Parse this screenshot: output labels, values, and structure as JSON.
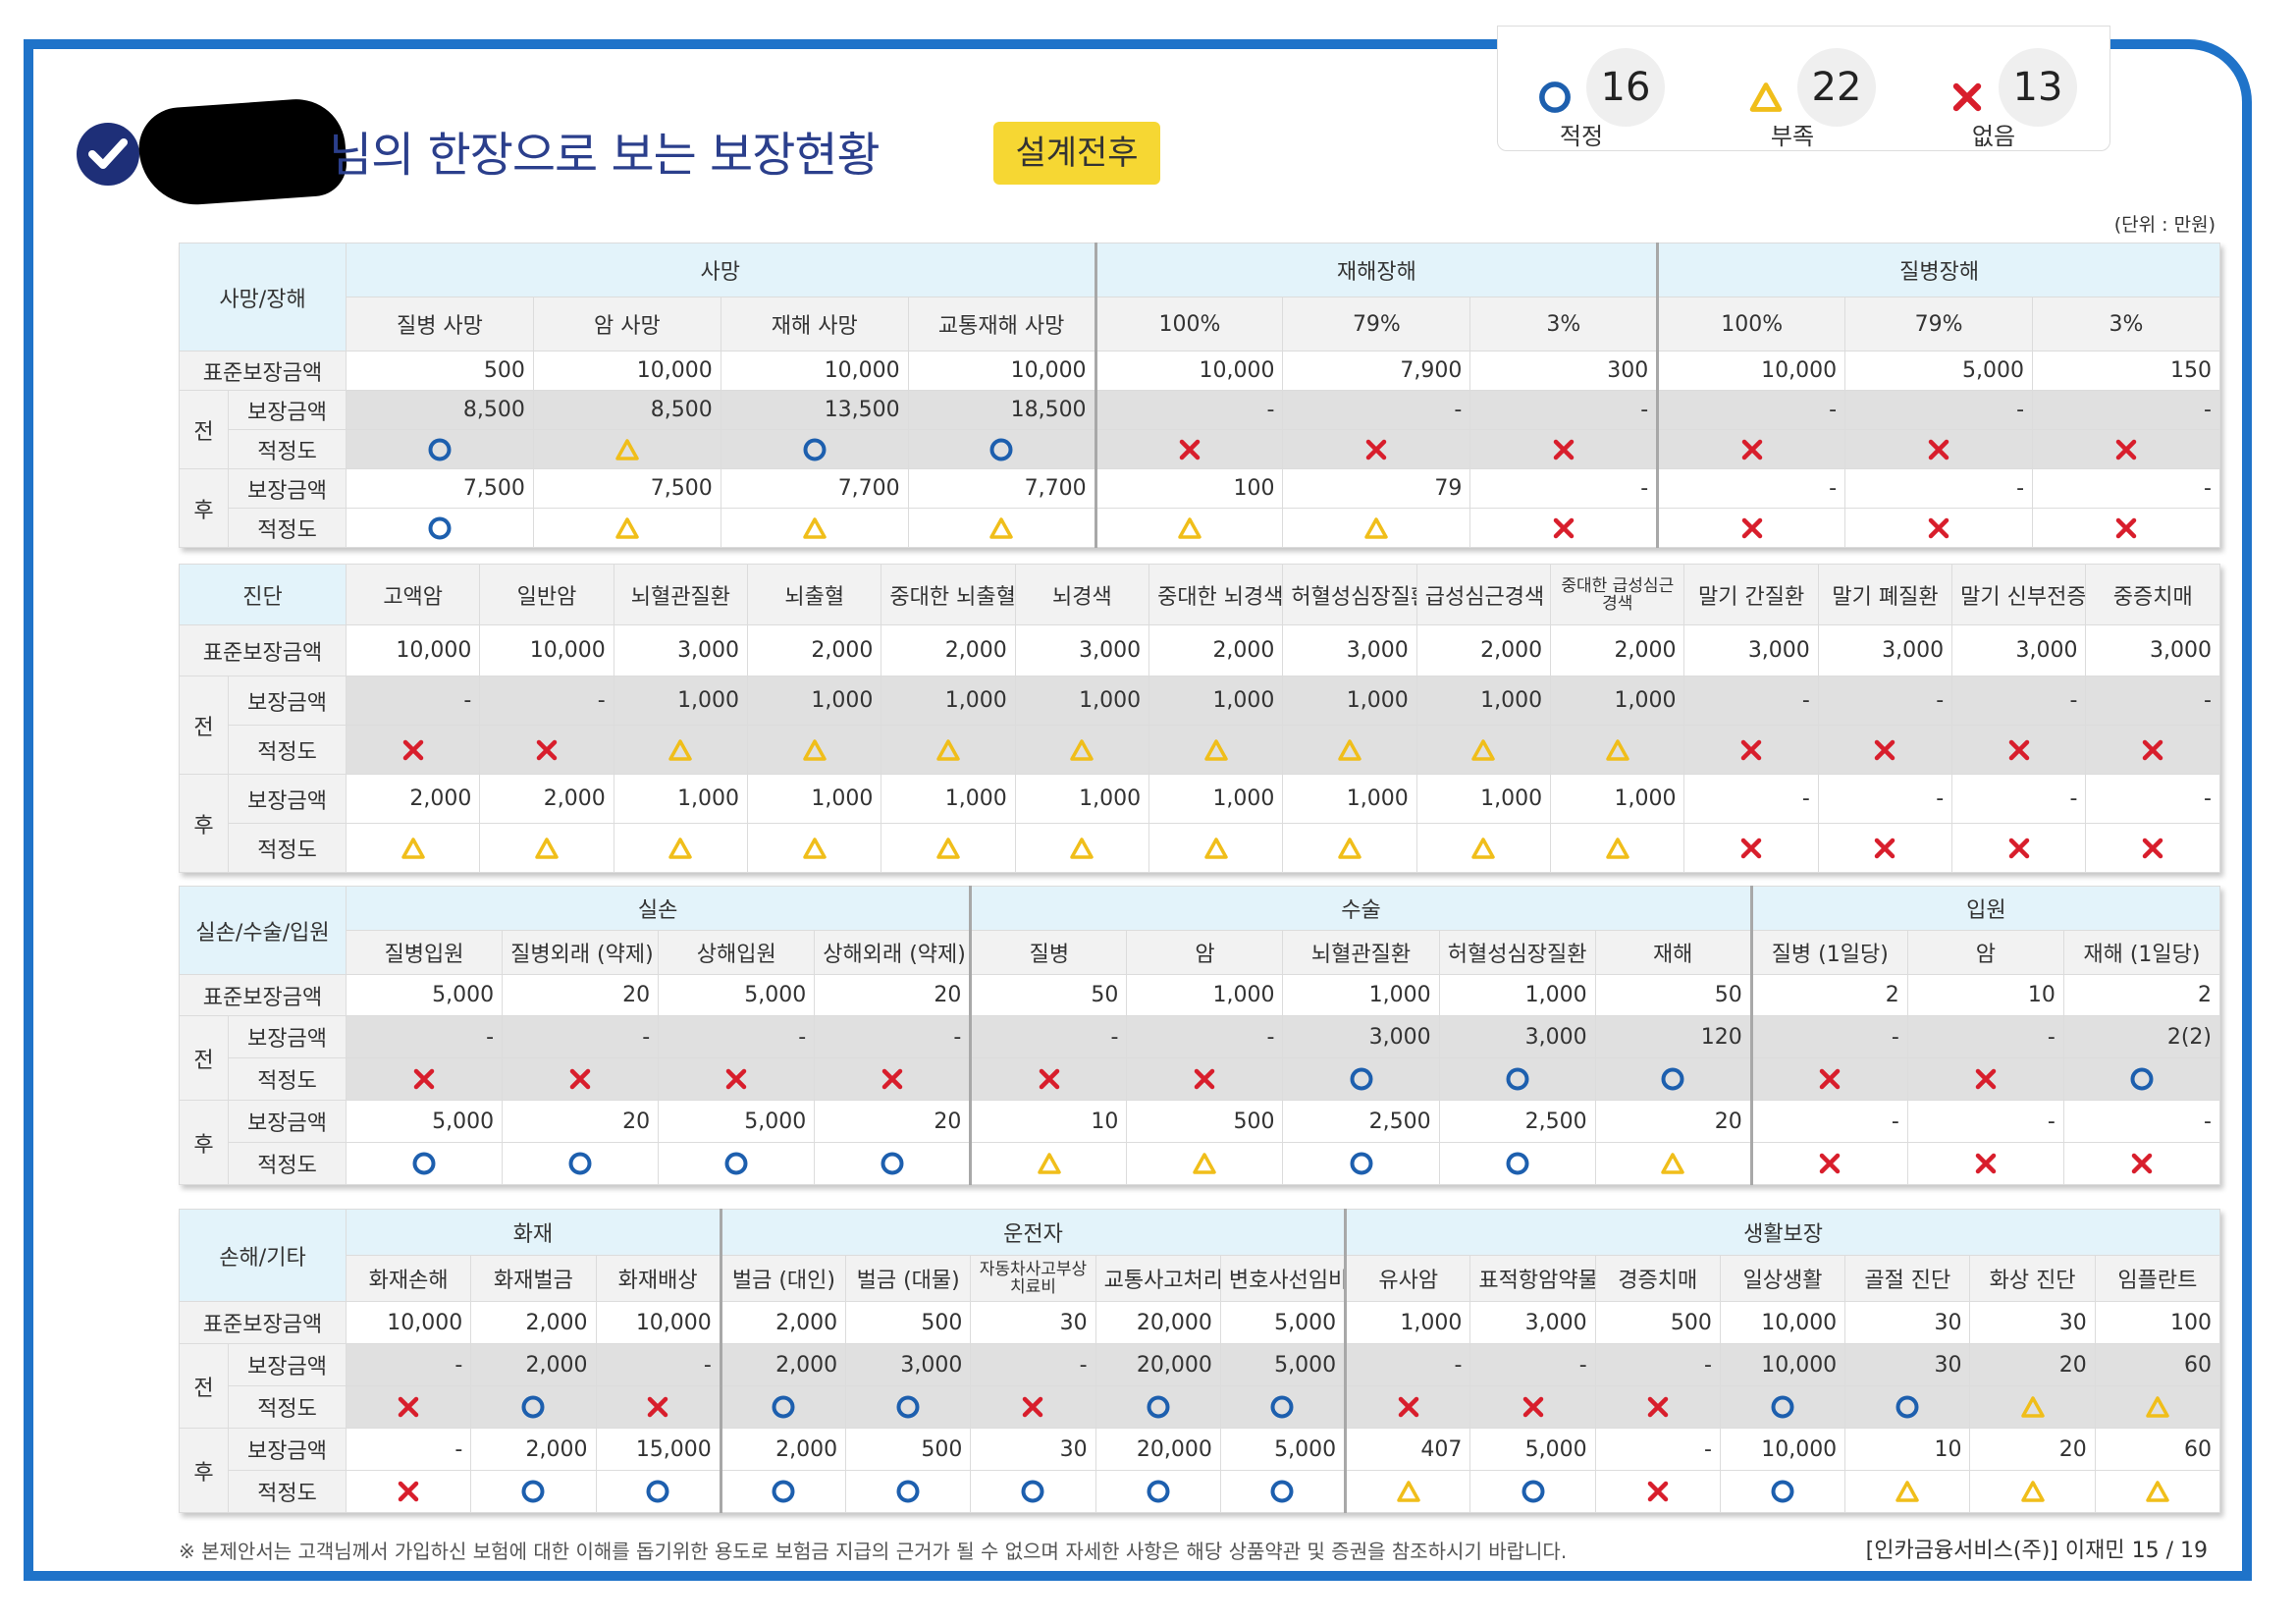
{
  "header": {
    "title": "님의 한장으로 보는 보장현황",
    "badge": "설계전후",
    "unit": "(단위 : 만원)"
  },
  "legend": [
    {
      "mark": "O",
      "label": "적정",
      "count": "16"
    },
    {
      "mark": "T",
      "label": "부족",
      "count": "22"
    },
    {
      "mark": "X",
      "label": "없음",
      "count": "13"
    }
  ],
  "labels": {
    "std": "표준보장금액",
    "before": "전",
    "after": "후",
    "amount": "보장금액",
    "fit": "적정도"
  },
  "colors": {
    "circle": "#1d5fae",
    "triangle": "#f0be1a",
    "cross": "#d81e2c",
    "frame": "#1f73c9"
  },
  "sections": [
    {
      "label": "사망/장해",
      "groups": [
        {
          "name": "사망",
          "span": 4
        },
        {
          "name": "재해장해",
          "span": 3
        },
        {
          "name": "질병장해",
          "span": 3
        }
      ],
      "columns": [
        "질병 사망",
        "암 사망",
        "재해 사망",
        "교통재해 사망",
        "100%",
        "79%",
        "3%",
        "100%",
        "79%",
        "3%"
      ],
      "std": [
        "500",
        "10,000",
        "10,000",
        "10,000",
        "10,000",
        "7,900",
        "300",
        "10,000",
        "5,000",
        "150"
      ],
      "before_amount": [
        "8,500",
        "8,500",
        "13,500",
        "18,500",
        "-",
        "-",
        "-",
        "-",
        "-",
        "-"
      ],
      "before_fit": [
        "O",
        "T",
        "O",
        "O",
        "X",
        "X",
        "X",
        "X",
        "X",
        "X"
      ],
      "after_amount": [
        "7,500",
        "7,500",
        "7,700",
        "7,700",
        "100",
        "79",
        "-",
        "-",
        "-",
        "-"
      ],
      "after_fit": [
        "O",
        "T",
        "T",
        "T",
        "T",
        "T",
        "X",
        "X",
        "X",
        "X"
      ]
    },
    {
      "label": "진단",
      "groups": [],
      "columns": [
        "고액암",
        "일반암",
        "뇌혈관질환",
        "뇌출혈",
        "중대한 뇌출혈",
        "뇌경색",
        "중대한 뇌경색",
        "허혈성심장질환",
        "급성심근경색",
        "중대한 급성심근경색",
        "말기 간질환",
        "말기 폐질환",
        "말기 신부전증",
        "중증치매"
      ],
      "std": [
        "10,000",
        "10,000",
        "3,000",
        "2,000",
        "2,000",
        "3,000",
        "2,000",
        "3,000",
        "2,000",
        "2,000",
        "3,000",
        "3,000",
        "3,000",
        "3,000"
      ],
      "before_amount": [
        "-",
        "-",
        "1,000",
        "1,000",
        "1,000",
        "1,000",
        "1,000",
        "1,000",
        "1,000",
        "1,000",
        "-",
        "-",
        "-",
        "-"
      ],
      "before_fit": [
        "X",
        "X",
        "T",
        "T",
        "T",
        "T",
        "T",
        "T",
        "T",
        "T",
        "X",
        "X",
        "X",
        "X"
      ],
      "after_amount": [
        "2,000",
        "2,000",
        "1,000",
        "1,000",
        "1,000",
        "1,000",
        "1,000",
        "1,000",
        "1,000",
        "1,000",
        "-",
        "-",
        "-",
        "-"
      ],
      "after_fit": [
        "T",
        "T",
        "T",
        "T",
        "T",
        "T",
        "T",
        "T",
        "T",
        "T",
        "X",
        "X",
        "X",
        "X"
      ]
    },
    {
      "label": "실손/수술/입원",
      "groups": [
        {
          "name": "실손",
          "span": 4
        },
        {
          "name": "수술",
          "span": 5
        },
        {
          "name": "입원",
          "span": 3
        }
      ],
      "columns": [
        "질병입원",
        "질병외래 (약제)",
        "상해입원",
        "상해외래 (약제)",
        "질병",
        "암",
        "뇌혈관질환",
        "허혈성심장질환",
        "재해",
        "질병 (1일당)",
        "암",
        "재해 (1일당)"
      ],
      "std": [
        "5,000",
        "20",
        "5,000",
        "20",
        "50",
        "1,000",
        "1,000",
        "1,000",
        "50",
        "2",
        "10",
        "2"
      ],
      "before_amount": [
        "-",
        "-",
        "-",
        "-",
        "-",
        "-",
        "3,000",
        "3,000",
        "120",
        "-",
        "-",
        "2(2)"
      ],
      "before_fit": [
        "X",
        "X",
        "X",
        "X",
        "X",
        "X",
        "O",
        "O",
        "O",
        "X",
        "X",
        "O"
      ],
      "after_amount": [
        "5,000",
        "20",
        "5,000",
        "20",
        "10",
        "500",
        "2,500",
        "2,500",
        "20",
        "-",
        "-",
        "-"
      ],
      "after_fit": [
        "O",
        "O",
        "O",
        "O",
        "T",
        "T",
        "O",
        "O",
        "T",
        "X",
        "X",
        "X"
      ]
    },
    {
      "label": "손해/기타",
      "groups": [
        {
          "name": "화재",
          "span": 3
        },
        {
          "name": "운전자",
          "span": 5
        },
        {
          "name": "생활보장",
          "span": 7
        }
      ],
      "columns": [
        "화재손해",
        "화재벌금",
        "화재배상",
        "벌금 (대인)",
        "벌금 (대물)",
        "자동차사고부상 치료비",
        "교통사고처리",
        "변호사선임비용",
        "유사암",
        "표적항암약물치료",
        "경증치매",
        "일상생활",
        "골절 진단",
        "화상 진단",
        "임플란트"
      ],
      "std": [
        "10,000",
        "2,000",
        "10,000",
        "2,000",
        "500",
        "30",
        "20,000",
        "5,000",
        "1,000",
        "3,000",
        "500",
        "10,000",
        "30",
        "30",
        "100"
      ],
      "before_amount": [
        "-",
        "2,000",
        "-",
        "2,000",
        "3,000",
        "-",
        "20,000",
        "5,000",
        "-",
        "-",
        "-",
        "10,000",
        "30",
        "20",
        "60"
      ],
      "before_fit": [
        "X",
        "O",
        "X",
        "O",
        "O",
        "X",
        "O",
        "O",
        "X",
        "X",
        "X",
        "O",
        "O",
        "T",
        "T"
      ],
      "after_amount": [
        "-",
        "2,000",
        "15,000",
        "2,000",
        "500",
        "30",
        "20,000",
        "5,000",
        "407",
        "5,000",
        "-",
        "10,000",
        "10",
        "20",
        "60"
      ],
      "after_fit": [
        "X",
        "O",
        "O",
        "O",
        "O",
        "O",
        "O",
        "O",
        "T",
        "O",
        "X",
        "O",
        "T",
        "T",
        "T"
      ]
    }
  ],
  "footer": {
    "note": "※ 본제안서는 고객님께서 가입하신 보험에 대한 이해를 돕기위한 용도로 보험금 지급의 근거가 될 수 없으며 자세한 사항은 해당 상품약관 및 증권을 참조하시기 바랍니다.",
    "page": "[인카금융서비스(주)] 이재민 15 / 19"
  }
}
